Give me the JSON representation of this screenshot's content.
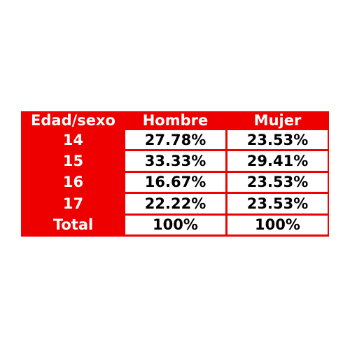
{
  "table": {
    "headers": [
      "Edad/sexo",
      "Hombre",
      "Mujer"
    ],
    "rows": [
      {
        "label": "14",
        "hombre": "27.78%",
        "mujer": "23.53%"
      },
      {
        "label": "15",
        "hombre": "33.33%",
        "mujer": "29.41%"
      },
      {
        "label": "16",
        "hombre": "16.67%",
        "mujer": "23.53%"
      },
      {
        "label": "17",
        "hombre": "22.22%",
        "mujer": "23.53%"
      },
      {
        "label": "Total",
        "hombre": "100%",
        "mujer": "100%"
      }
    ]
  },
  "colors": {
    "header_bg": "#ee0000",
    "header_text": "#ffffff",
    "cell_bg": "#ffffff",
    "cell_text": "#000000"
  }
}
